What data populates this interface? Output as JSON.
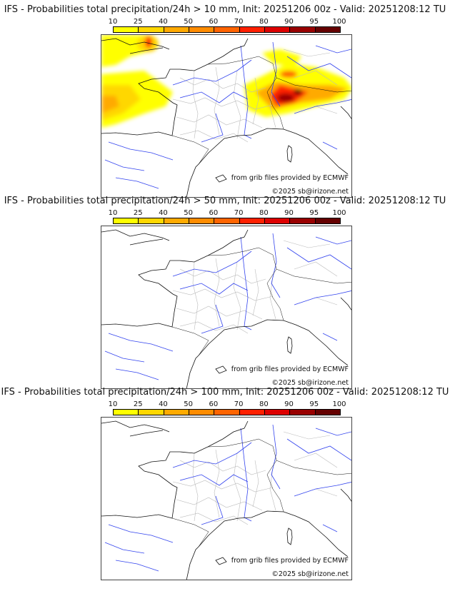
{
  "colorbar": {
    "labels": [
      "10",
      "25",
      "40",
      "50",
      "60",
      "70",
      "80",
      "90",
      "95",
      "100"
    ],
    "colors": [
      "#ffff00",
      "#ffd700",
      "#ffaa00",
      "#ff8c00",
      "#ff6400",
      "#ff2000",
      "#dd0000",
      "#990000",
      "#650000"
    ]
  },
  "panels": [
    {
      "title": "IFS - Probabilities total precipitation/24h > 10 mm, Init: 20251206 00z - Valid: 20251208:12 TU",
      "threshold_mm": 10
    },
    {
      "title": "IFS - Probabilities total precipitation/24h > 50 mm, Init: 20251206 00z - Valid: 20251208:12 TU",
      "threshold_mm": 50
    },
    {
      "title": "IFS - Probabilities total precipitation/24h > 100 mm, Init: 20251206 00z - Valid: 20251208:12 TU",
      "threshold_mm": 100
    }
  ],
  "credits": {
    "source": "from grib files provided by ECMWF",
    "copyright": "©2025 sb@irizone.net"
  }
}
